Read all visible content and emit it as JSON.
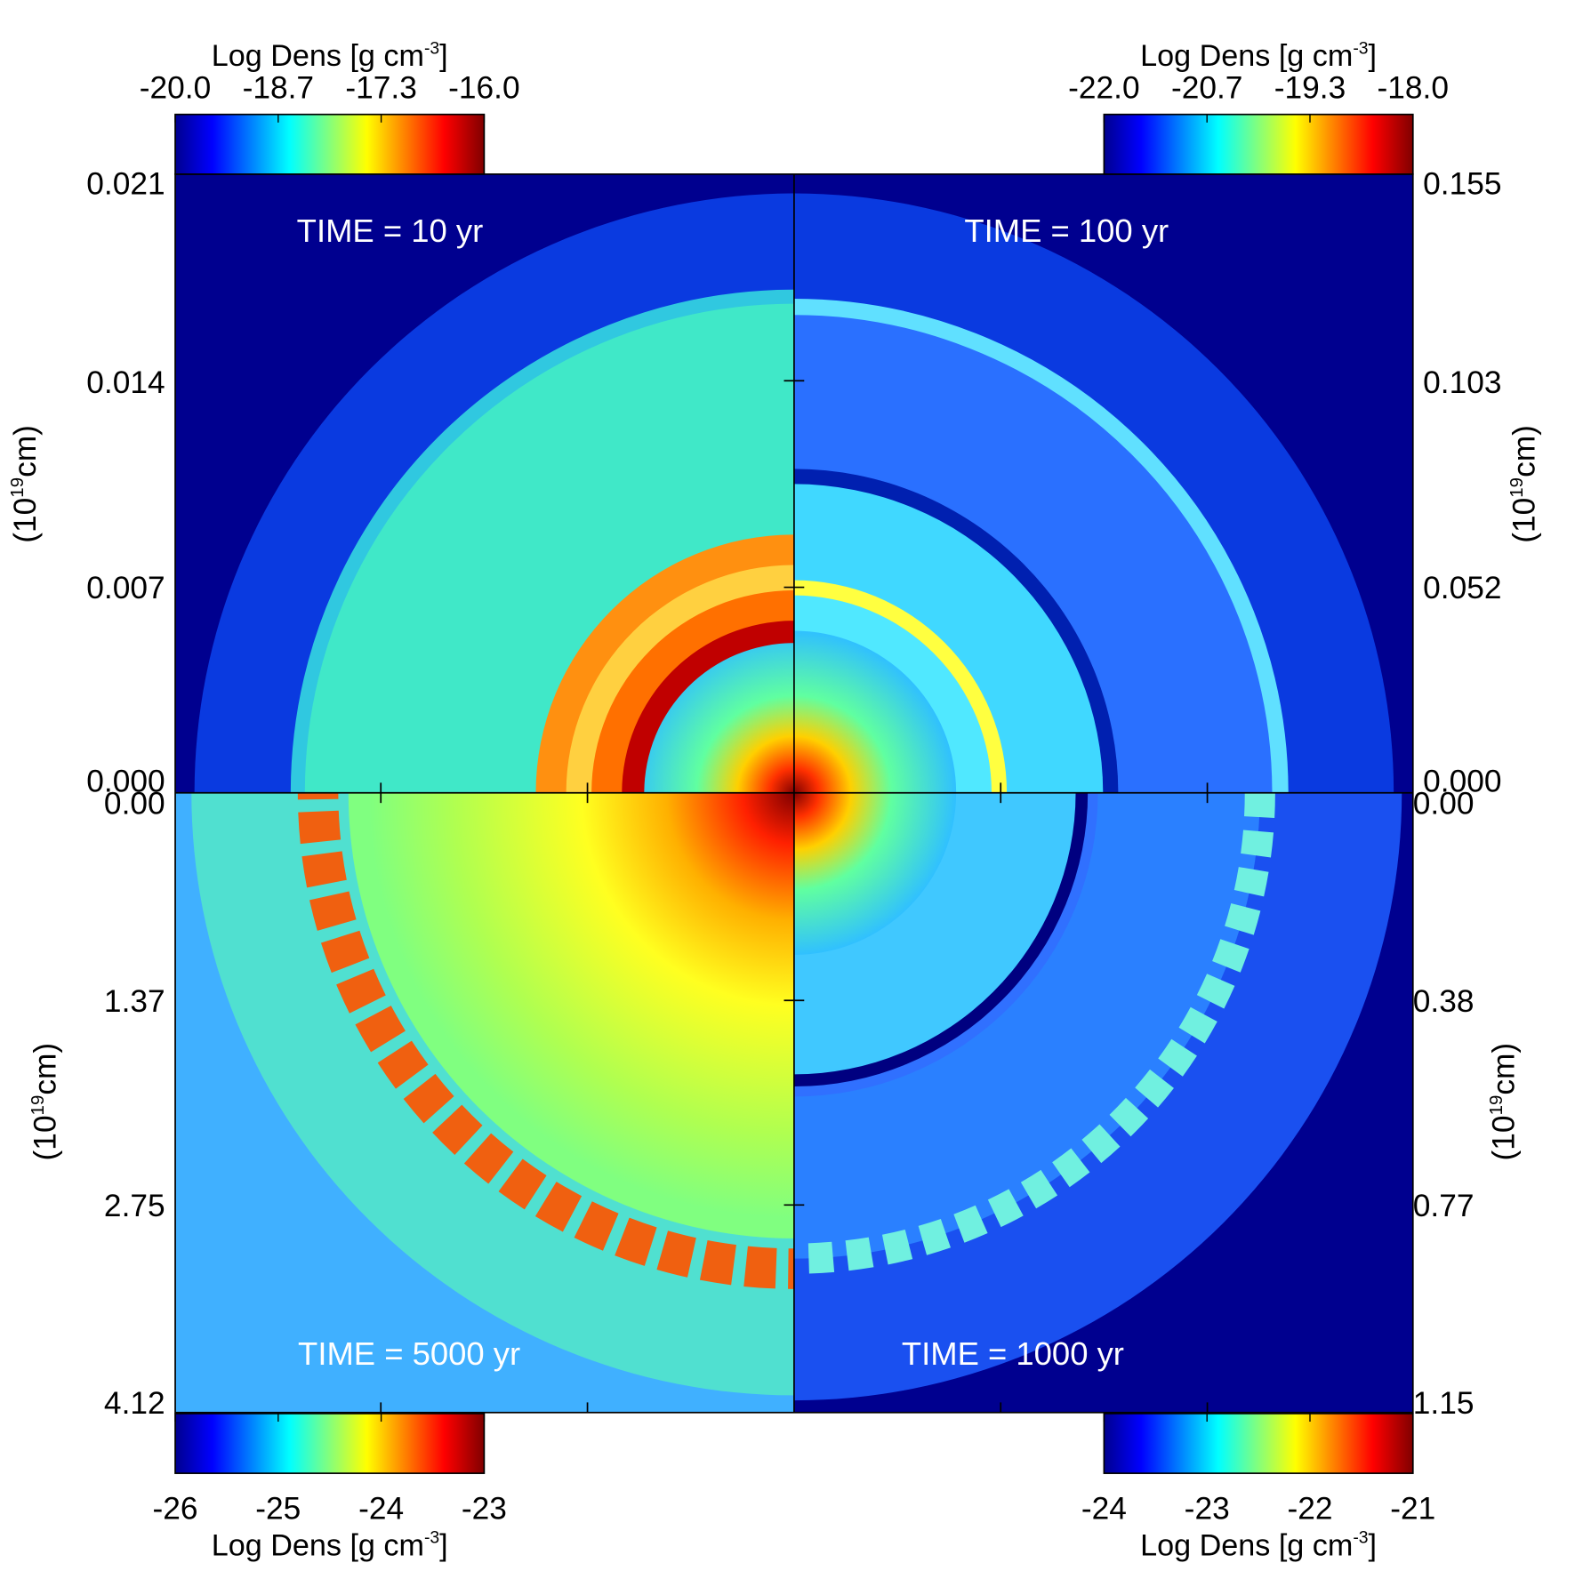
{
  "panels": [
    {
      "time": "TIME = 10 yr"
    },
    {
      "time": "TIME = 100 yr"
    },
    {
      "time": "TIME = 5000 yr"
    },
    {
      "time": "TIME = 1000 yr"
    }
  ],
  "colorbars": [
    {
      "title": [
        "Log Dens [g cm",
        "-3",
        "]"
      ],
      "ticks": [
        "-20.0",
        "-18.7",
        "-17.3",
        "-16.0"
      ]
    },
    {
      "title": [
        "Log Dens [g cm",
        "-3",
        "]"
      ],
      "ticks": [
        "-22.0",
        "-20.7",
        "-19.3",
        "-18.0"
      ]
    },
    {
      "title": [
        "Log Dens [g cm",
        "-3",
        "]"
      ],
      "ticks": [
        "-26",
        "-25",
        "-24",
        "-23"
      ]
    },
    {
      "title": [
        "Log Dens [g cm",
        "-3",
        "]"
      ],
      "ticks": [
        "-24",
        "-23",
        "-22",
        "-21"
      ]
    }
  ],
  "axes": [
    {
      "label": [
        "(10",
        "19",
        "cm)"
      ],
      "ticks": [
        "0.021",
        "0.014",
        "0.007",
        "0.000"
      ]
    },
    {
      "label": [
        "(10",
        "19",
        "cm)"
      ],
      "ticks": [
        "0.155",
        "0.103",
        "0.052",
        "0.000"
      ]
    },
    {
      "label": [
        "(10",
        "19",
        "cm)"
      ],
      "ticks": [
        "0.00",
        "1.37",
        "2.75",
        "4.12"
      ]
    },
    {
      "label": [
        "(10",
        "19",
        "cm)"
      ],
      "ticks": [
        "0.00",
        "0.38",
        "0.77",
        "1.15"
      ]
    }
  ]
}
